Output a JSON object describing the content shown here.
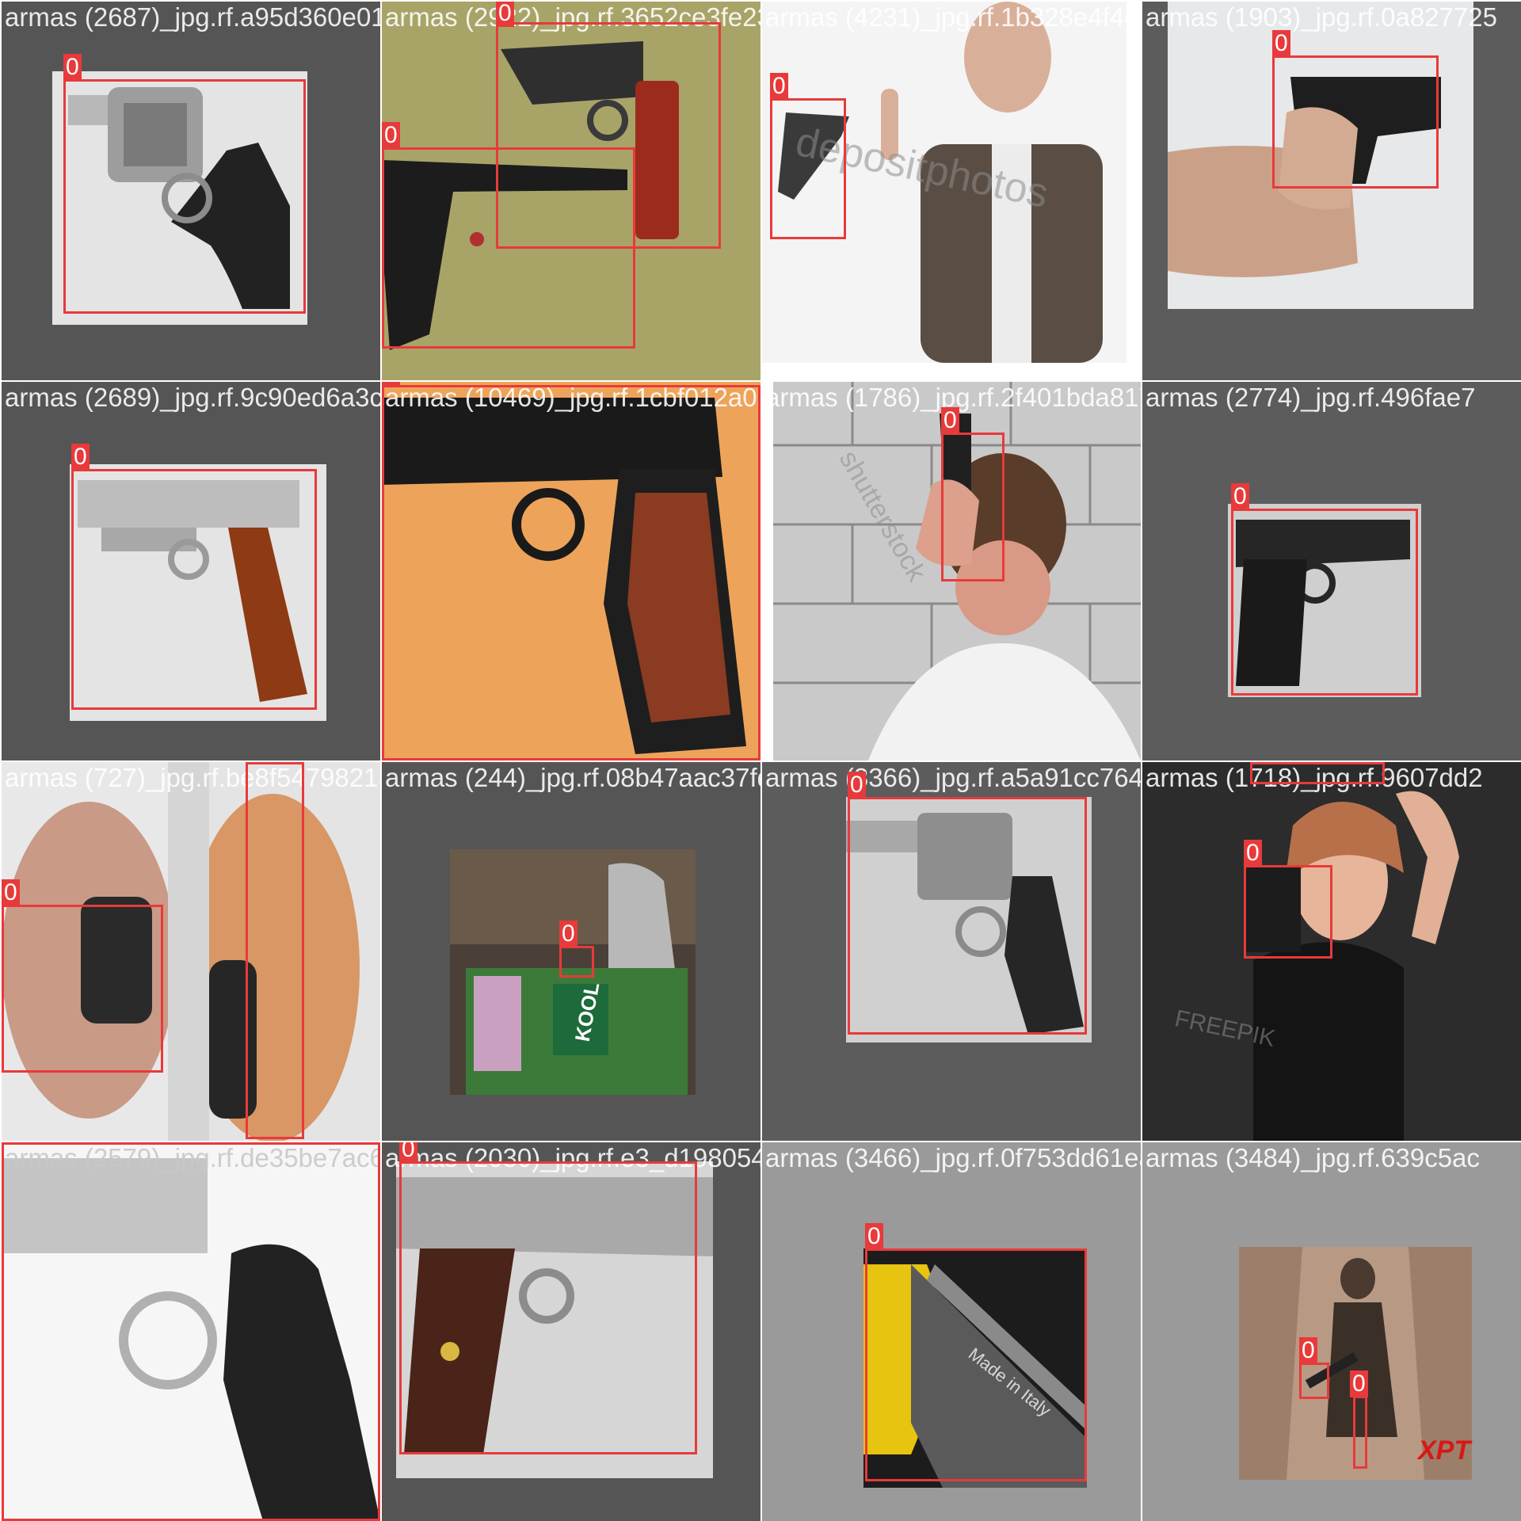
{
  "mosaic": {
    "class_label": "0",
    "tiles": [
      {
        "id": 1,
        "filename": "armas (2687)_jpg.rf.a95d360e01571f22a2299",
        "subject": "silver revolver"
      },
      {
        "id": 2,
        "filename": "armas (2922)_jpg.rf.3652ce3fe2324296f1ff",
        "subject": "two pistols on green cloth"
      },
      {
        "id": 3,
        "filename": "armas (4231)_jpg.rf.1b328e4f4d4cbda921",
        "subject": "man pointing pistol",
        "watermark": "depositphotos"
      },
      {
        "id": 4,
        "filename": "armas (1903)_jpg.rf.0a827725",
        "subject": "hand holding black pistol"
      },
      {
        "id": 5,
        "filename": "armas (2689)_jpg.rf.9c90ed6a3cb47083590",
        "subject": "silver pistol with wood grip"
      },
      {
        "id": 6,
        "filename": "armas (10469)_jpg.rf.1cbf012a0d5100956b",
        "subject": "pistol on orange background"
      },
      {
        "id": 7,
        "filename": "armas (1786)_jpg.rf.2f401bda8178a32774a3",
        "subject": "man holding pistol to head",
        "watermark": "shutterstock"
      },
      {
        "id": 8,
        "filename": "armas (2774)_jpg.rf.496fae7",
        "subject": "black pistol"
      },
      {
        "id": 9,
        "filename": "armas (727)_jpg.rf.be8f5479821806744aa8",
        "subject": "hands gripping pistol muzzle"
      },
      {
        "id": 10,
        "filename": "armas (244)_jpg.rf.08b47aac37fdc2580581",
        "subject": "store counter surveillance",
        "sign_text": "KOOL"
      },
      {
        "id": 11,
        "filename": "armas (3366)_jpg.rf.a5a91cc7649c81716",
        "subject": "stainless revolver"
      },
      {
        "id": 12,
        "filename": "armas (1718)_jpg.rf.9607dd2",
        "subject": "woman posing with pistol",
        "watermark": "FREEPIK"
      },
      {
        "id": 13,
        "filename": "armas (2579)_jpg.rf.de35be7ac6ec05ac0c",
        "subject": "revolver close-up"
      },
      {
        "id": 14,
        "filename": "armas (2030)_jpg.rf.e3_d19805484813663279",
        "subject": "pistol with wood grip"
      },
      {
        "id": 15,
        "filename": "armas (3466)_jpg.rf.0f753dd61eab524836a7",
        "subject": "pistol slide detail",
        "engraving": "Made in Italy"
      },
      {
        "id": 16,
        "filename": "armas (3484)_jpg.rf.639c5ac",
        "subject": "soldier with rifle",
        "logo": "XPT"
      }
    ]
  }
}
